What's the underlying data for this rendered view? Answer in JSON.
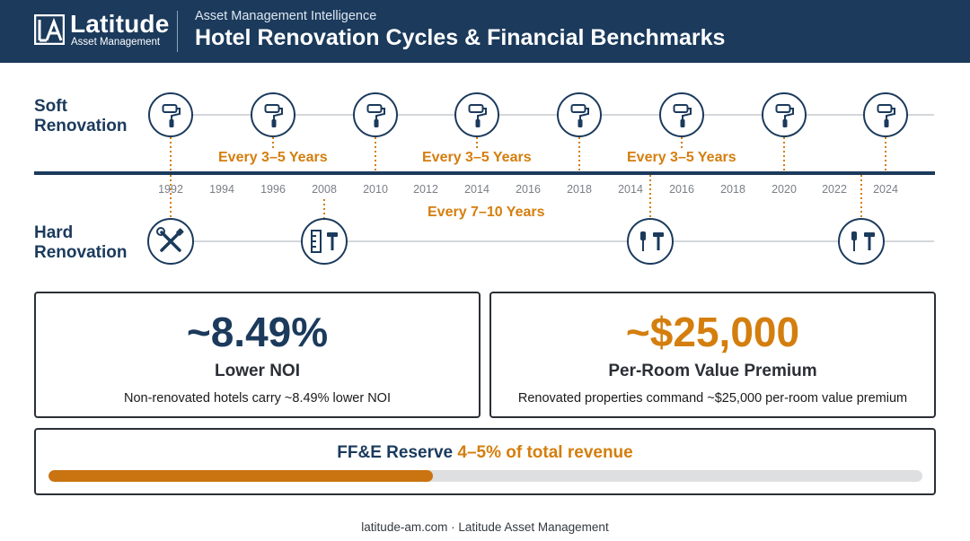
{
  "header": {
    "brand": "Latitude",
    "brand_sub": "Asset Management",
    "eyebrow": "Asset Management Intelligence",
    "title": "Hotel Renovation Cycles & Financial Benchmarks"
  },
  "timeline": {
    "soft_label": [
      "Soft",
      "Renovation"
    ],
    "hard_label": [
      "Hard",
      "Renovation"
    ],
    "years": [
      "1992",
      "1994",
      "1996",
      "2008",
      "2010",
      "2012",
      "2014",
      "2016",
      "2018",
      "2014",
      "2016",
      "2018",
      "2020",
      "2022",
      "2024"
    ],
    "soft_periods": [
      "Every 3–5 Years",
      "Every 3–5 Years",
      "Every 3–5 Years"
    ],
    "hard_period": "Every 7–10 Years",
    "soft_icons": [
      "paint-roller-icon",
      "paint-roller-icon",
      "paint-roller-icon",
      "paint-roller-icon",
      "paint-roller-icon",
      "paint-roller-icon",
      "paint-roller-icon",
      "paint-roller-icon"
    ],
    "hard_icons": [
      "wrench-screwdriver-icon",
      "ruler-hammer-icon",
      "screwdriver-hammer-icon",
      "screwdriver-hammer-icon"
    ]
  },
  "stats": {
    "noi": {
      "value": "~8.49%",
      "label": "Lower NOI",
      "desc": "Non-renovated hotels carry ~8.49% lower NOI",
      "color": "#1b3a5c"
    },
    "premium": {
      "value": "~$25,000",
      "label": "Per-Room Value Premium",
      "desc": "Renovated properties command ~$25,000 per-room value premium",
      "color": "#d47e0e"
    }
  },
  "reserve": {
    "label": "FF&E Reserve",
    "range": "4–5% of total revenue",
    "fill_fraction": 0.44
  },
  "footer": "latitude-am.com · Latitude Asset Management",
  "colors": {
    "navy": "#1b3a5c",
    "orange": "#d47e0e",
    "bar_fill": "#c97411",
    "track": "#dedfe1"
  }
}
